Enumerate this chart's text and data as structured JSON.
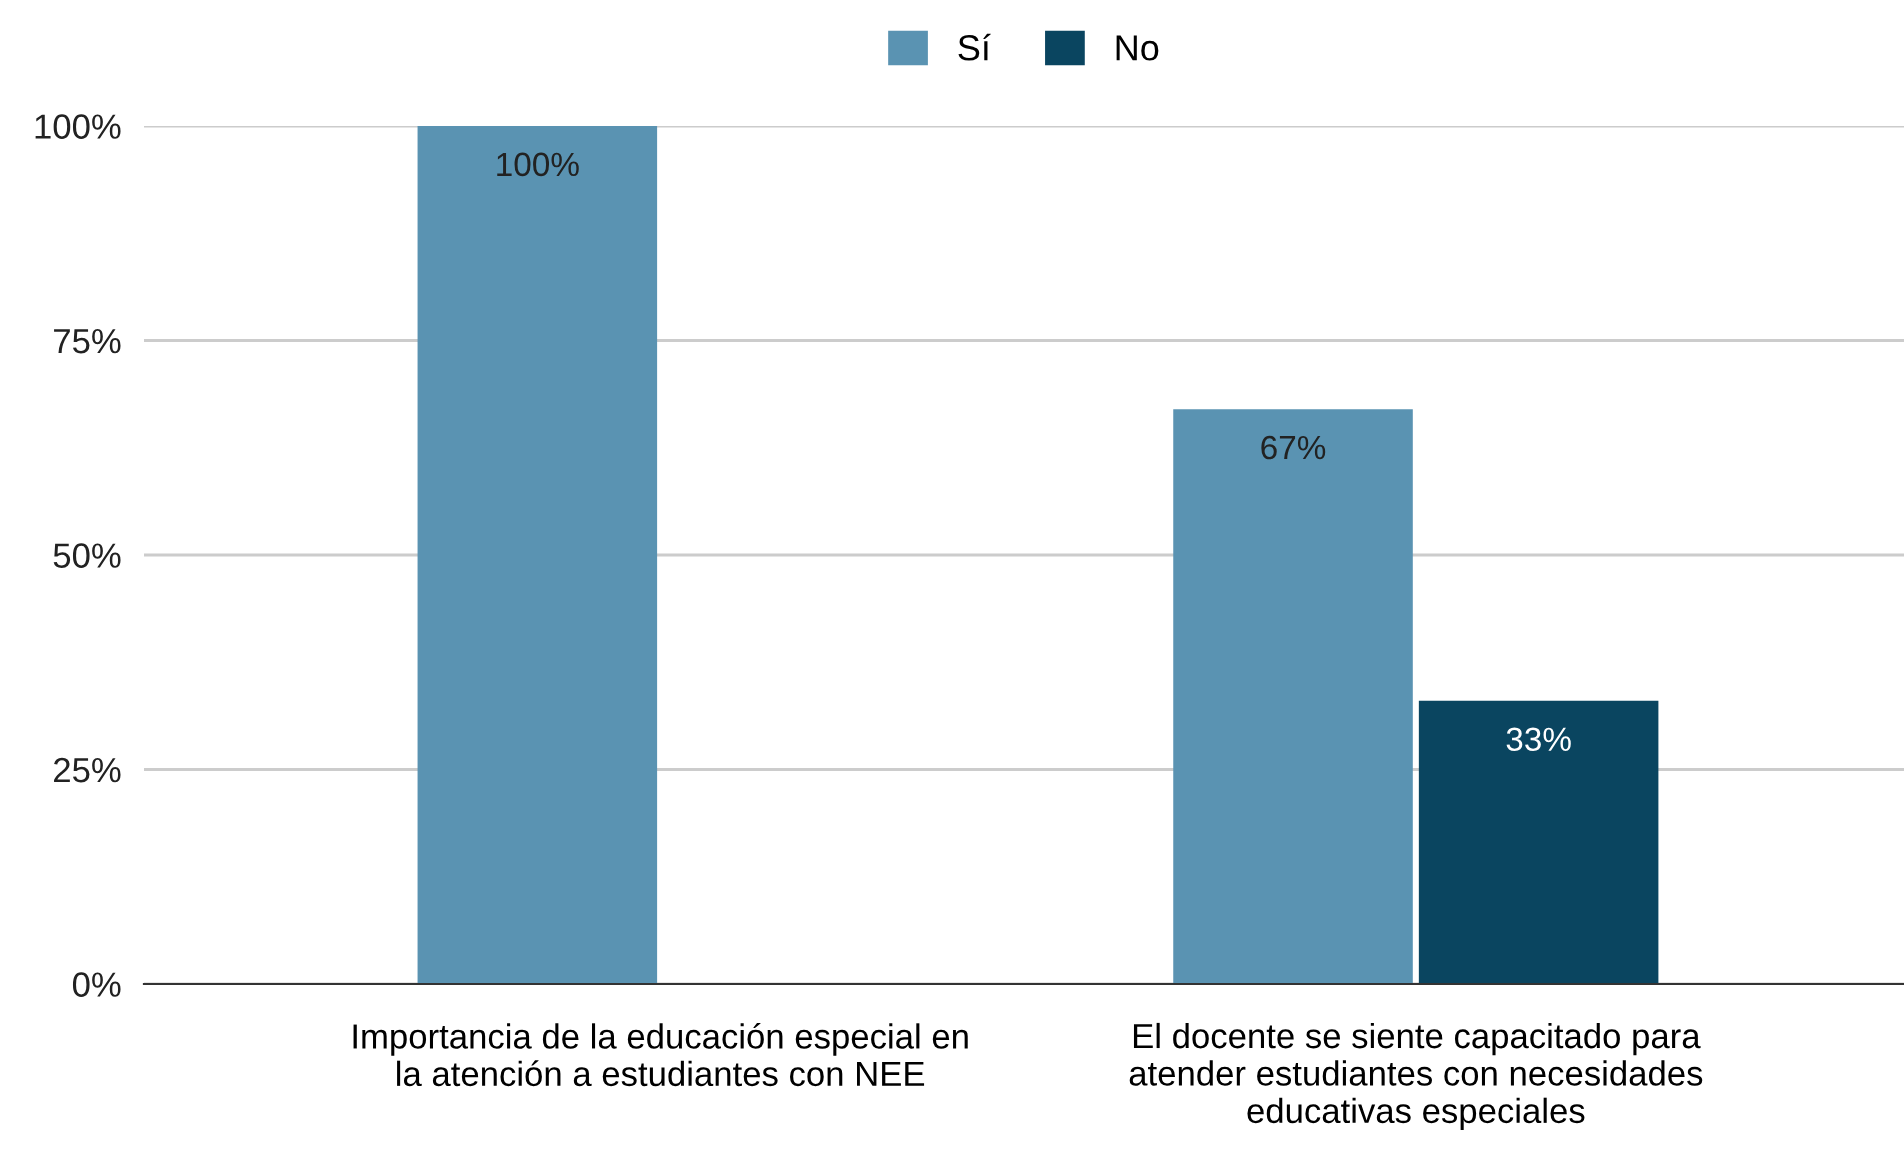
{
  "chart_data": {
    "type": "bar",
    "categories": [
      "Importancia de la educación especial en\nla atención a estudiantes con NEE",
      "El docente se siente capacitado para\natender estudiantes con necesidades\neducativas especiales"
    ],
    "series": [
      {
        "name": "Sí",
        "color": "#5a93b2",
        "values": [
          100,
          67
        ],
        "value_labels": [
          "100%",
          "67%"
        ]
      },
      {
        "name": "No",
        "color": "#0a4560",
        "values": [
          null,
          33
        ],
        "value_labels": [
          null,
          "33%"
        ]
      }
    ],
    "ylim": [
      0,
      100
    ],
    "yticks": [
      {
        "value": 0,
        "label": "0%"
      },
      {
        "value": 25,
        "label": "25%"
      },
      {
        "value": 50,
        "label": "50%"
      },
      {
        "value": 75,
        "label": "75%"
      },
      {
        "value": 100,
        "label": "100%"
      }
    ],
    "grid": "y",
    "legend": "top"
  }
}
